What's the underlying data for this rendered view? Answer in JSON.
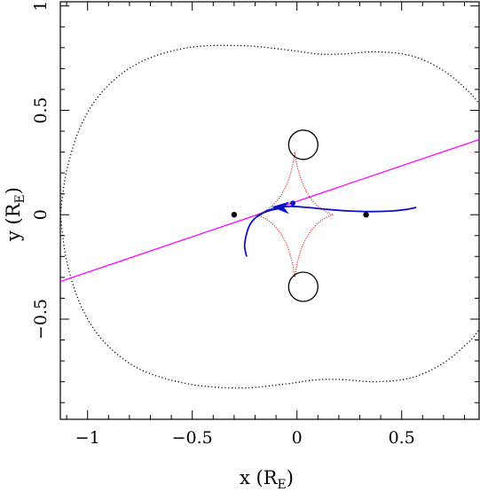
{
  "chart_data": {
    "type": "line",
    "title": "",
    "xlabel": {
      "main": "x (R",
      "sub": "E",
      "close": ")"
    },
    "ylabel": {
      "main": "y (R",
      "sub": "E",
      "close": ")"
    },
    "xlim": [
      -1.13,
      0.87
    ],
    "ylim": [
      -0.98,
      1.02
    ],
    "grid": false,
    "xticks": [
      {
        "value": -1.0,
        "label": "−1"
      },
      {
        "value": -0.5,
        "label": "−0.5"
      },
      {
        "value": 0.0,
        "label": "0"
      },
      {
        "value": 0.5,
        "label": "0.5"
      }
    ],
    "yticks": [
      {
        "value": -0.5,
        "label": "−0.5"
      },
      {
        "value": 0.0,
        "label": "0"
      },
      {
        "value": 0.5,
        "label": "0.5"
      },
      {
        "value": 1.0,
        "label": "1"
      }
    ],
    "colors": {
      "critical_curve": "#000000",
      "caustic": "#e0201c",
      "lens_axis": "#ff00ff",
      "trajectory": "#1010c8",
      "lens": "#000000",
      "image_circle": "#000000"
    },
    "lens_axis_line": {
      "x1": -1.13,
      "y1": -0.32,
      "x2": 0.87,
      "y2": 0.36
    },
    "lens_positions": [
      {
        "x": -0.3,
        "y": 0.0
      },
      {
        "x": 0.33,
        "y": 0.0
      }
    ],
    "image_circles": [
      {
        "cx": 0.03,
        "cy": 0.335,
        "r": 0.07
      },
      {
        "cx": 0.03,
        "cy": -0.345,
        "r": 0.07
      }
    ],
    "critical_curve_points": [
      [
        -1.13,
        0.0
      ],
      [
        -1.1,
        0.21
      ],
      [
        -1.03,
        0.43
      ],
      [
        -0.92,
        0.6
      ],
      [
        -0.75,
        0.73
      ],
      [
        -0.52,
        0.8
      ],
      [
        -0.27,
        0.81
      ],
      [
        -0.05,
        0.79
      ],
      [
        0.1,
        0.77
      ],
      [
        0.22,
        0.77
      ],
      [
        0.38,
        0.78
      ],
      [
        0.55,
        0.76
      ],
      [
        0.7,
        0.69
      ],
      [
        0.82,
        0.59
      ],
      [
        0.87,
        0.53
      ]
    ],
    "critical_curve_points_lower": [
      [
        -1.13,
        0.0
      ],
      [
        -1.1,
        -0.22
      ],
      [
        -1.03,
        -0.44
      ],
      [
        -0.92,
        -0.61
      ],
      [
        -0.75,
        -0.74
      ],
      [
        -0.52,
        -0.81
      ],
      [
        -0.27,
        -0.83
      ],
      [
        -0.05,
        -0.81
      ],
      [
        0.1,
        -0.79
      ],
      [
        0.22,
        -0.79
      ],
      [
        0.38,
        -0.8
      ],
      [
        0.55,
        -0.78
      ],
      [
        0.7,
        -0.71
      ],
      [
        0.82,
        -0.61
      ],
      [
        0.87,
        -0.55
      ]
    ],
    "caustic_cusps": [
      {
        "x": -0.01,
        "y": 0.3
      },
      {
        "x": 0.17,
        "y": 0.0
      },
      {
        "x": -0.01,
        "y": -0.3
      },
      {
        "x": -0.19,
        "y": 0.0
      }
    ],
    "trajectory_main": [
      [
        -0.19,
        -0.01
      ],
      [
        -0.14,
        0.02
      ],
      [
        -0.08,
        0.035
      ],
      [
        -0.03,
        0.04
      ],
      [
        0.05,
        0.035
      ],
      [
        0.15,
        0.025
      ],
      [
        0.25,
        0.018
      ],
      [
        0.35,
        0.015
      ],
      [
        0.45,
        0.018
      ],
      [
        0.52,
        0.025
      ],
      [
        0.57,
        0.035
      ]
    ],
    "trajectory_arc": [
      [
        -0.24,
        -0.2
      ],
      [
        -0.25,
        -0.15
      ],
      [
        -0.24,
        -0.09
      ],
      [
        -0.22,
        -0.04
      ],
      [
        -0.18,
        0.0
      ],
      [
        -0.13,
        0.02
      ],
      [
        -0.08,
        0.03
      ]
    ],
    "trajectory_arrow": {
      "x": -0.07,
      "y": 0.035,
      "dir_x": -1.0,
      "dir_y": 0.05
    },
    "source_point": {
      "x": -0.02,
      "y": 0.055
    }
  }
}
